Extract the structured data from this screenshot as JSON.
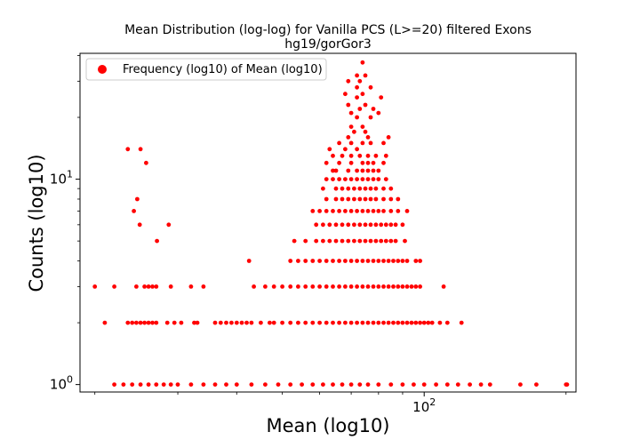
{
  "chart_data": {
    "type": "scatter",
    "title": "Mean Distribution (log-log) for Vanilla PCS (L>=20) filtered Exons",
    "subtitle": "hg19/gorGor3",
    "xlabel": "Mean (log10)",
    "ylabel": "Counts (log10)",
    "xscale": "log",
    "yscale": "log",
    "xlim": [
      18.6,
      210
    ],
    "ylim": [
      0.92,
      41
    ],
    "x_ticks": [
      {
        "value": 100,
        "base": "10",
        "exp": "2"
      }
    ],
    "y_ticks": [
      {
        "value": 1,
        "base": "10",
        "exp": "0"
      },
      {
        "value": 10,
        "base": "10",
        "exp": "1"
      }
    ],
    "grid": false,
    "legend": {
      "position": "top-left",
      "entries": [
        "Frequency (log10) of Mean (log10)"
      ]
    },
    "marker_color": "#ff0000",
    "series": [
      {
        "name": "Frequency (log10) of Mean (log10)",
        "points": [
          [
            22.0,
            1
          ],
          [
            23.0,
            1
          ],
          [
            24.0,
            1
          ],
          [
            25.0,
            1
          ],
          [
            26.0,
            1
          ],
          [
            27.0,
            1
          ],
          [
            28.0,
            1
          ],
          [
            29.0,
            1
          ],
          [
            30.0,
            1
          ],
          [
            32.0,
            1
          ],
          [
            34.0,
            1
          ],
          [
            36.0,
            1
          ],
          [
            38.0,
            1
          ],
          [
            40.0,
            1
          ],
          [
            43.0,
            1
          ],
          [
            46.0,
            1
          ],
          [
            49.0,
            1
          ],
          [
            52.0,
            1
          ],
          [
            55.0,
            1
          ],
          [
            58.0,
            1
          ],
          [
            61.0,
            1
          ],
          [
            64.0,
            1
          ],
          [
            67.0,
            1
          ],
          [
            70.0,
            1
          ],
          [
            73.0,
            1
          ],
          [
            76.0,
            1
          ],
          [
            80.0,
            1
          ],
          [
            85.0,
            1
          ],
          [
            90.0,
            1
          ],
          [
            95.0,
            1
          ],
          [
            100.0,
            1
          ],
          [
            106.0,
            1
          ],
          [
            112.0,
            1
          ],
          [
            118.0,
            1
          ],
          [
            125.0,
            1
          ],
          [
            132.0,
            1
          ],
          [
            138.0,
            1
          ],
          [
            160.0,
            1
          ],
          [
            173.0,
            1
          ],
          [
            200.0,
            1
          ],
          [
            201.0,
            1
          ],
          [
            20.0,
            3
          ],
          [
            22.0,
            3
          ],
          [
            24.5,
            3
          ],
          [
            25.5,
            3
          ],
          [
            26.0,
            3
          ],
          [
            26.5,
            3
          ],
          [
            27.0,
            3
          ],
          [
            29.0,
            3
          ],
          [
            32.0,
            3
          ],
          [
            34.0,
            3
          ],
          [
            43.5,
            3
          ],
          [
            46.0,
            3
          ],
          [
            48.0,
            3
          ],
          [
            50.0,
            3
          ],
          [
            52.0,
            3
          ],
          [
            54.0,
            3
          ],
          [
            56.0,
            3
          ],
          [
            58.0,
            3
          ],
          [
            60.0,
            3
          ],
          [
            62.0,
            3
          ],
          [
            64.0,
            3
          ],
          [
            66.0,
            3
          ],
          [
            68.0,
            3
          ],
          [
            70.0,
            3
          ],
          [
            72.0,
            3
          ],
          [
            74.0,
            3
          ],
          [
            76.0,
            3
          ],
          [
            78.0,
            3
          ],
          [
            80.0,
            3
          ],
          [
            82.0,
            3
          ],
          [
            84.0,
            3
          ],
          [
            86.0,
            3
          ],
          [
            88.0,
            3
          ],
          [
            90.0,
            3
          ],
          [
            92.0,
            3
          ],
          [
            94.0,
            3
          ],
          [
            96.0,
            3
          ],
          [
            98.0,
            3
          ],
          [
            110.0,
            3
          ],
          [
            21.0,
            2
          ],
          [
            23.5,
            2
          ],
          [
            24.0,
            2
          ],
          [
            24.5,
            2
          ],
          [
            25.0,
            2
          ],
          [
            25.5,
            2
          ],
          [
            26.0,
            2
          ],
          [
            26.5,
            2
          ],
          [
            27.0,
            2
          ],
          [
            28.5,
            2
          ],
          [
            29.5,
            2
          ],
          [
            30.5,
            2
          ],
          [
            32.5,
            2
          ],
          [
            33.0,
            2
          ],
          [
            36.0,
            2
          ],
          [
            37.0,
            2
          ],
          [
            38.0,
            2
          ],
          [
            39.0,
            2
          ],
          [
            40.0,
            2
          ],
          [
            41.0,
            2
          ],
          [
            42.0,
            2
          ],
          [
            43.0,
            2
          ],
          [
            45.0,
            2
          ],
          [
            47.0,
            2
          ],
          [
            48.0,
            2
          ],
          [
            50.0,
            2
          ],
          [
            52.0,
            2
          ],
          [
            54.0,
            2
          ],
          [
            56.0,
            2
          ],
          [
            58.0,
            2
          ],
          [
            60.0,
            2
          ],
          [
            62.0,
            2
          ],
          [
            64.0,
            2
          ],
          [
            66.0,
            2
          ],
          [
            68.0,
            2
          ],
          [
            70.0,
            2
          ],
          [
            72.0,
            2
          ],
          [
            74.0,
            2
          ],
          [
            76.0,
            2
          ],
          [
            78.0,
            2
          ],
          [
            80.0,
            2
          ],
          [
            82.0,
            2
          ],
          [
            84.0,
            2
          ],
          [
            86.0,
            2
          ],
          [
            88.0,
            2
          ],
          [
            90.0,
            2
          ],
          [
            92.0,
            2
          ],
          [
            94.0,
            2
          ],
          [
            96.0,
            2
          ],
          [
            98.0,
            2
          ],
          [
            100.0,
            2
          ],
          [
            102.0,
            2
          ],
          [
            104.0,
            2
          ],
          [
            108.0,
            2
          ],
          [
            112.0,
            2
          ],
          [
            120.0,
            2
          ],
          [
            42.5,
            4
          ],
          [
            52.0,
            4
          ],
          [
            54.0,
            4
          ],
          [
            56.0,
            4
          ],
          [
            58.0,
            4
          ],
          [
            60.0,
            4
          ],
          [
            62.0,
            4
          ],
          [
            64.0,
            4
          ],
          [
            66.0,
            4
          ],
          [
            68.0,
            4
          ],
          [
            70.0,
            4
          ],
          [
            72.0,
            4
          ],
          [
            74.0,
            4
          ],
          [
            76.0,
            4
          ],
          [
            78.0,
            4
          ],
          [
            80.0,
            4
          ],
          [
            82.0,
            4
          ],
          [
            84.0,
            4
          ],
          [
            86.0,
            4
          ],
          [
            88.0,
            4
          ],
          [
            90.0,
            4
          ],
          [
            92.0,
            4
          ],
          [
            96.0,
            4
          ],
          [
            98.0,
            4
          ],
          [
            53.0,
            5
          ],
          [
            56.0,
            5
          ],
          [
            59.0,
            5
          ],
          [
            61.0,
            5
          ],
          [
            63.0,
            5
          ],
          [
            65.0,
            5
          ],
          [
            67.0,
            5
          ],
          [
            69.0,
            5
          ],
          [
            71.0,
            5
          ],
          [
            73.0,
            5
          ],
          [
            75.0,
            5
          ],
          [
            77.0,
            5
          ],
          [
            79.0,
            5
          ],
          [
            81.0,
            5
          ],
          [
            83.0,
            5
          ],
          [
            85.0,
            5
          ],
          [
            87.0,
            5
          ],
          [
            91.0,
            5
          ],
          [
            59.0,
            6
          ],
          [
            61.0,
            6
          ],
          [
            63.0,
            6
          ],
          [
            65.0,
            6
          ],
          [
            67.0,
            6
          ],
          [
            69.0,
            6
          ],
          [
            71.0,
            6
          ],
          [
            73.0,
            6
          ],
          [
            75.0,
            6
          ],
          [
            77.0,
            6
          ],
          [
            79.0,
            6
          ],
          [
            81.0,
            6
          ],
          [
            83.0,
            6
          ],
          [
            85.0,
            6
          ],
          [
            87.0,
            6
          ],
          [
            90.0,
            6
          ],
          [
            58.0,
            7
          ],
          [
            60.0,
            7
          ],
          [
            62.0,
            7
          ],
          [
            64.0,
            7
          ],
          [
            66.0,
            7
          ],
          [
            68.0,
            7
          ],
          [
            70.0,
            7
          ],
          [
            72.0,
            7
          ],
          [
            74.0,
            7
          ],
          [
            76.0,
            7
          ],
          [
            78.0,
            7
          ],
          [
            80.0,
            7
          ],
          [
            82.0,
            7
          ],
          [
            85.0,
            7
          ],
          [
            88.0,
            7
          ],
          [
            92.0,
            7
          ],
          [
            62.0,
            8
          ],
          [
            65.0,
            8
          ],
          [
            67.0,
            8
          ],
          [
            69.0,
            8
          ],
          [
            71.0,
            8
          ],
          [
            73.0,
            8
          ],
          [
            75.0,
            8
          ],
          [
            77.0,
            8
          ],
          [
            79.0,
            8
          ],
          [
            82.0,
            8
          ],
          [
            85.0,
            8
          ],
          [
            88.0,
            8
          ],
          [
            61.0,
            9
          ],
          [
            65.0,
            9
          ],
          [
            67.0,
            9
          ],
          [
            69.0,
            9
          ],
          [
            71.0,
            9
          ],
          [
            73.0,
            9
          ],
          [
            75.0,
            9
          ],
          [
            77.0,
            9
          ],
          [
            79.0,
            9
          ],
          [
            82.0,
            9
          ],
          [
            85.0,
            9
          ],
          [
            62.0,
            10
          ],
          [
            64.0,
            10
          ],
          [
            66.0,
            10
          ],
          [
            68.0,
            10
          ],
          [
            70.0,
            10
          ],
          [
            72.0,
            10
          ],
          [
            74.0,
            10
          ],
          [
            76.0,
            10
          ],
          [
            78.0,
            10
          ],
          [
            80.0,
            10
          ],
          [
            83.0,
            10
          ],
          [
            64.0,
            11
          ],
          [
            65.0,
            11
          ],
          [
            69.0,
            11
          ],
          [
            72.0,
            11
          ],
          [
            74.0,
            11
          ],
          [
            76.0,
            11
          ],
          [
            78.0,
            11
          ],
          [
            80.0,
            11
          ],
          [
            62.0,
            12
          ],
          [
            66.0,
            12
          ],
          [
            70.0,
            12
          ],
          [
            74.0,
            12
          ],
          [
            76.0,
            12
          ],
          [
            78.0,
            12
          ],
          [
            82.0,
            12
          ],
          [
            64.0,
            13
          ],
          [
            67.0,
            13
          ],
          [
            70.0,
            13
          ],
          [
            73.0,
            13
          ],
          [
            76.0,
            13
          ],
          [
            79.0,
            13
          ],
          [
            83.0,
            13
          ],
          [
            63.0,
            14
          ],
          [
            68.0,
            14
          ],
          [
            72.0,
            14
          ],
          [
            66.0,
            15
          ],
          [
            70.0,
            15
          ],
          [
            74.0,
            15
          ],
          [
            77.0,
            15
          ],
          [
            82.0,
            15
          ],
          [
            69.0,
            16
          ],
          [
            76.0,
            16
          ],
          [
            84.0,
            16
          ],
          [
            71.0,
            17
          ],
          [
            75.0,
            17
          ],
          [
            70.0,
            18
          ],
          [
            74.0,
            18
          ],
          [
            72.0,
            20
          ],
          [
            77.0,
            20
          ],
          [
            70.0,
            21
          ],
          [
            80.0,
            21
          ],
          [
            73.0,
            22
          ],
          [
            78.0,
            22
          ],
          [
            69.0,
            23
          ],
          [
            75.0,
            23
          ],
          [
            72.0,
            25
          ],
          [
            81.0,
            25
          ],
          [
            68.0,
            26
          ],
          [
            74.0,
            26
          ],
          [
            72.0,
            28
          ],
          [
            77.0,
            28
          ],
          [
            69.0,
            30
          ],
          [
            73.0,
            30
          ],
          [
            72.0,
            32
          ],
          [
            75.0,
            32
          ],
          [
            74.0,
            37
          ],
          [
            23.5,
            14
          ],
          [
            25.0,
            14
          ],
          [
            25.7,
            12
          ],
          [
            24.2,
            7
          ],
          [
            24.6,
            8
          ],
          [
            24.9,
            6
          ],
          [
            27.1,
            5
          ],
          [
            28.7,
            6
          ]
        ]
      }
    ]
  }
}
